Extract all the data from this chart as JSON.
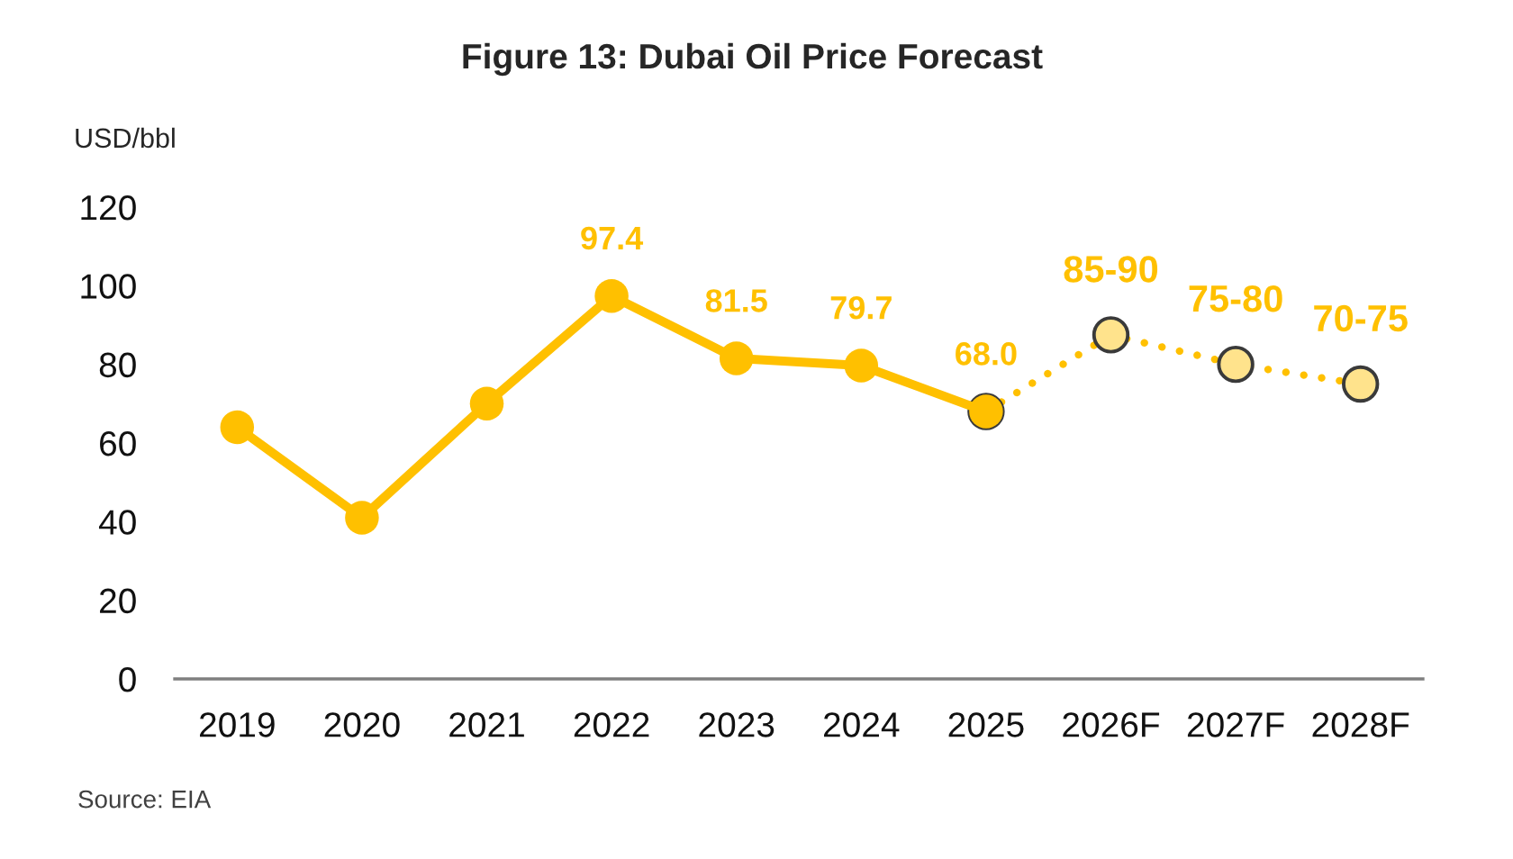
{
  "chart_data": {
    "type": "line",
    "title": "Figure 13: Dubai Oil Price Forecast",
    "ylabel": "USD/bbl",
    "annotations": [
      "Source: EIA"
    ],
    "categories": [
      "2019",
      "2020",
      "2021",
      "2022",
      "2023",
      "2024",
      "2025",
      "2026F",
      "2027F",
      "2028F"
    ],
    "series": [
      {
        "color": "#ffc000",
        "line_style": "solid",
        "values": [
          64,
          41,
          70,
          97.4,
          81.5,
          79.7,
          68.0,
          null,
          null,
          null
        ],
        "value_labels": [
          null,
          null,
          null,
          "97.4",
          "81.5",
          "79.7",
          "68.0",
          null,
          null,
          null
        ]
      },
      {
        "color": "#ffc000",
        "line_style": "dotted",
        "values": [
          null,
          null,
          null,
          null,
          null,
          null,
          68.0,
          87.5,
          80,
          75
        ],
        "value_labels": [
          null,
          null,
          null,
          null,
          null,
          null,
          null,
          "85-90",
          "75-80",
          "70-75"
        ]
      }
    ],
    "ylim": [
      0,
      120
    ],
    "yticks": [
      0,
      20,
      40,
      60,
      80,
      100,
      120
    ],
    "marker": "circle"
  }
}
